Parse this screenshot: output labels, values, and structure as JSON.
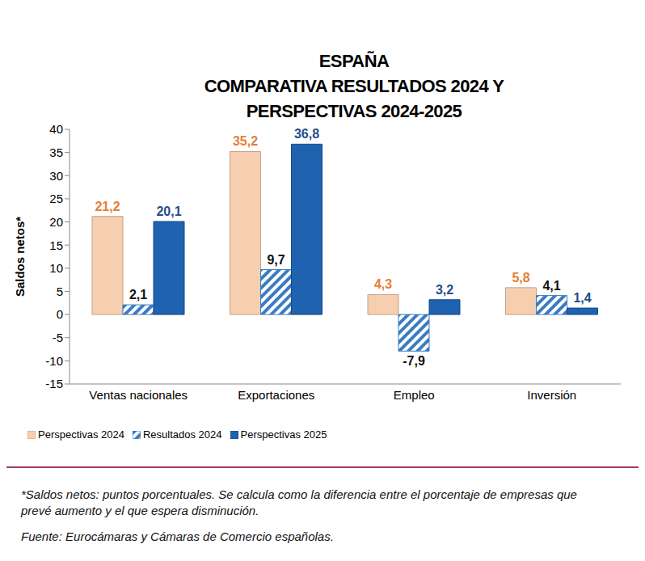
{
  "chart_data": {
    "type": "bar",
    "title": "ESPAÑA\nCOMPARATIVA RESULTADOS 2024 Y\nPERSPECTIVAS 2024-2025",
    "y_label": "Saldos netos*",
    "categories": [
      "Ventas nacionales",
      "Exportaciones",
      "Empleo",
      "Inversión"
    ],
    "series": [
      {
        "name": "Perspectivas 2024",
        "color": "#f5cfb0",
        "values": [
          21.2,
          35.2,
          4.3,
          5.8
        ],
        "value_labels": [
          "21,2",
          "35,2",
          "4,3",
          "5,8"
        ]
      },
      {
        "name": "Resultados 2024",
        "color": "#3a7cc4",
        "values": [
          2.1,
          9.7,
          -7.9,
          4.1
        ],
        "value_labels": [
          "2,1",
          "9,7",
          "-7,9",
          "4,1"
        ]
      },
      {
        "name": "Perspectivas 2025",
        "color": "#1f62b0",
        "values": [
          20.1,
          36.8,
          3.2,
          1.4
        ],
        "value_labels": [
          "20,1",
          "36,8",
          "3,2",
          "1,4"
        ]
      }
    ],
    "ylim": [
      -15,
      40
    ],
    "yticks": [
      -15,
      -10,
      -5,
      0,
      5,
      10,
      15,
      20,
      25,
      30,
      35,
      40
    ],
    "grid": false,
    "legend": "bottom left",
    "data_labels": true,
    "footnote": "*Saldos netos: puntos porcentuales. Se calcula como la diferencia entre el porcentaje de empresas que prevé aumento y el que espera disminución.",
    "source": "Fuente: Eurocámaras y Cámaras de Comercio españolas."
  }
}
